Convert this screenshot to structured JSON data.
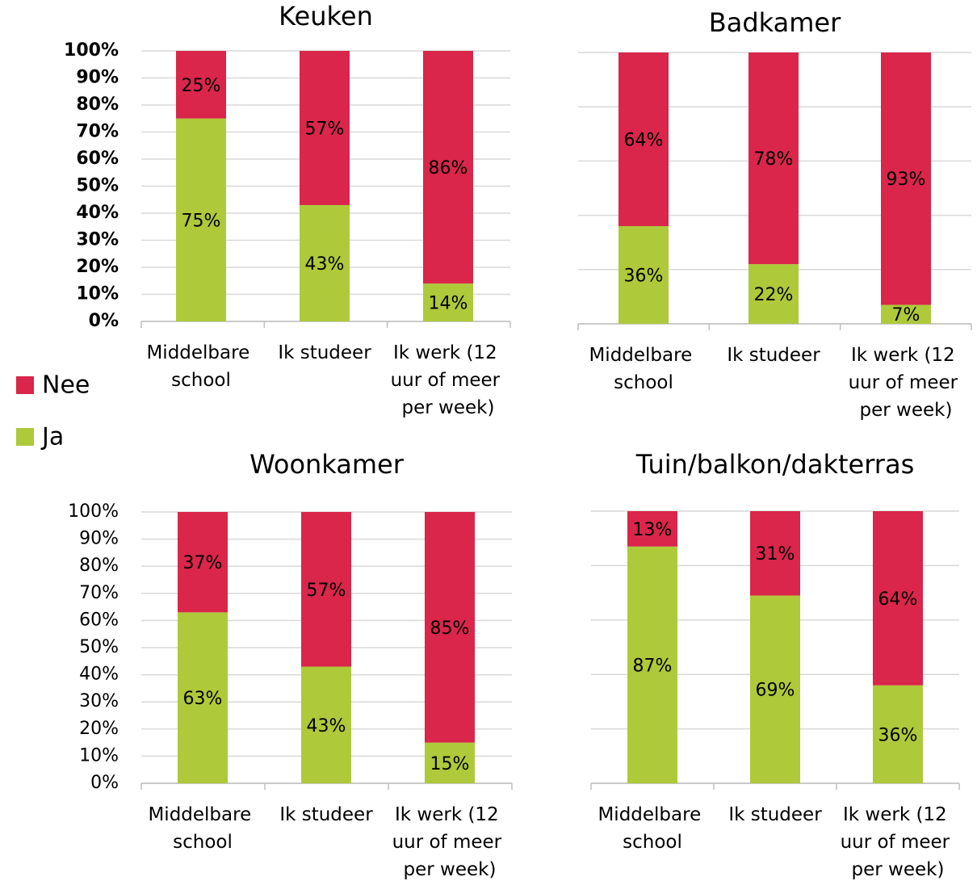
{
  "legend": [
    {
      "name": "Nee",
      "color": "#d9264a"
    },
    {
      "name": "Ja",
      "color": "#aec93a"
    }
  ],
  "chart_data": [
    {
      "type": "bar",
      "stacked": true,
      "title": "Keuken",
      "categories": [
        "Middelbare school",
        "Ik studeer",
        "Ik werk (12 uur of meer per week)"
      ],
      "series": [
        {
          "values": [
            25,
            57,
            86
          ],
          "value_labels": [
            "25%",
            "57%",
            "86%"
          ]
        },
        {
          "values": [
            75,
            43,
            14
          ],
          "value_labels": [
            "75%",
            "43%",
            "14%"
          ]
        }
      ],
      "ylim": [
        0,
        100
      ],
      "yticks": [
        {
          "value": 0,
          "label": "0%"
        },
        {
          "value": 10,
          "label": "10%"
        },
        {
          "value": 20,
          "label": "20%"
        },
        {
          "value": 30,
          "label": "30%"
        },
        {
          "value": 40,
          "label": "40%"
        },
        {
          "value": 50,
          "label": "50%"
        },
        {
          "value": 60,
          "label": "60%"
        },
        {
          "value": 70,
          "label": "70%"
        },
        {
          "value": 80,
          "label": "80%"
        },
        {
          "value": 90,
          "label": "90%"
        },
        {
          "value": 100,
          "label": "100%"
        }
      ],
      "grid": true
    },
    {
      "type": "bar",
      "stacked": true,
      "title": "Badkamer",
      "categories": [
        "Middelbare school",
        "Ik studeer",
        "Ik werk (12 uur of meer per week)"
      ],
      "series": [
        {
          "values": [
            64,
            78,
            93
          ],
          "value_labels": [
            "64%",
            "78%",
            "93%"
          ]
        },
        {
          "values": [
            36,
            22,
            7
          ],
          "value_labels": [
            "36%",
            "22%",
            "7%"
          ]
        }
      ],
      "ylim": [
        0,
        100
      ],
      "yticks": [
        0,
        20,
        40,
        60,
        80,
        100
      ],
      "grid": true
    },
    {
      "type": "bar",
      "stacked": true,
      "title": "Woonkamer",
      "categories": [
        "Middelbare school",
        "Ik studeer",
        "Ik werk (12 uur of meer per week)"
      ],
      "series": [
        {
          "values": [
            37,
            57,
            85
          ],
          "value_labels": [
            "37%",
            "57%",
            "85%"
          ]
        },
        {
          "values": [
            63,
            43,
            15
          ],
          "value_labels": [
            "63%",
            "43%",
            "15%"
          ]
        }
      ],
      "ylim": [
        0,
        100
      ],
      "yticks": [
        {
          "value": 0,
          "label": "0%"
        },
        {
          "value": 10,
          "label": "10%"
        },
        {
          "value": 20,
          "label": "20%"
        },
        {
          "value": 30,
          "label": "30%"
        },
        {
          "value": 40,
          "label": "40%"
        },
        {
          "value": 50,
          "label": "50%"
        },
        {
          "value": 60,
          "label": "60%"
        },
        {
          "value": 70,
          "label": "70%"
        },
        {
          "value": 80,
          "label": "80%"
        },
        {
          "value": 90,
          "label": "90%"
        },
        {
          "value": 100,
          "label": "100%"
        }
      ],
      "grid": true
    },
    {
      "type": "bar",
      "stacked": true,
      "title": "Tuin/balkon/dakterras",
      "categories": [
        "Middelbare school",
        "Ik studeer",
        "Ik werk (12 uur of meer per week)"
      ],
      "series": [
        {
          "values": [
            13,
            31,
            64
          ],
          "value_labels": [
            "13%",
            "31%",
            "64%"
          ]
        },
        {
          "values": [
            87,
            69,
            36
          ],
          "value_labels": [
            "87%",
            "69%",
            "36%"
          ]
        }
      ],
      "ylim": [
        0,
        100
      ],
      "yticks": [
        0,
        20,
        40,
        60,
        80,
        100
      ],
      "grid": true
    }
  ]
}
